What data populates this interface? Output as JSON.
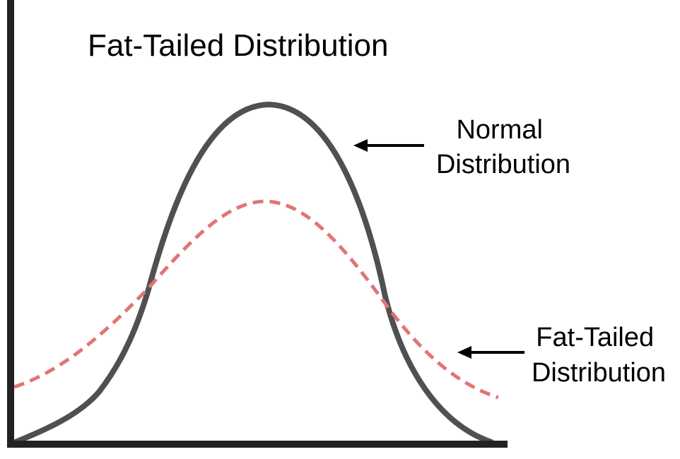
{
  "title": "Fat-Tailed Distribution",
  "annotations": {
    "normal": [
      "Normal",
      "Distribution"
    ],
    "fat_tailed": [
      "Fat-Tailed",
      "Distribution"
    ]
  },
  "curves": {
    "normal": {
      "stroke_color": "#505050",
      "style": "solid"
    },
    "fat_tailed": {
      "stroke_color": "#e07575",
      "style": "dashed"
    }
  },
  "colors": {
    "axes": "#222222",
    "arrows": "#000000",
    "background": "#ffffff"
  }
}
